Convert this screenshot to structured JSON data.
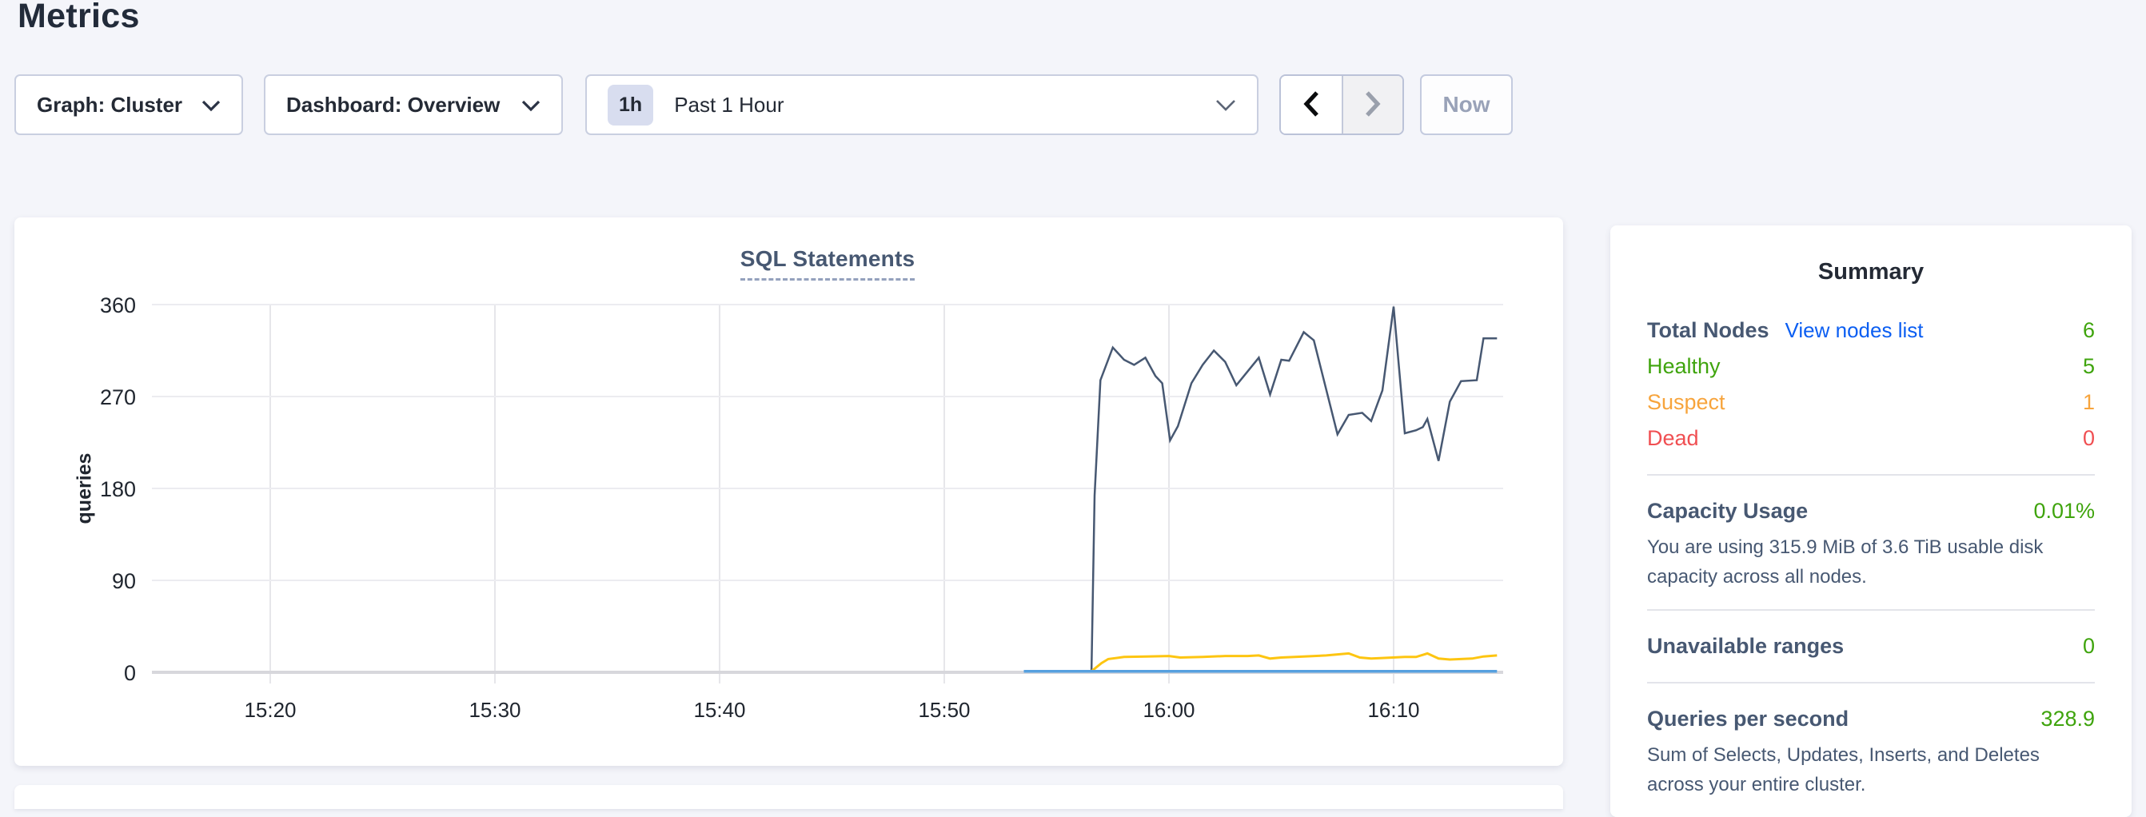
{
  "page": {
    "title": "Metrics"
  },
  "toolbar": {
    "graph_dropdown": "Graph: Cluster",
    "dashboard_dropdown": "Dashboard: Overview",
    "time_window": {
      "badge": "1h",
      "label": "Past 1 Hour"
    },
    "now_button": "Now"
  },
  "summary": {
    "title": "Summary",
    "sections": [
      {
        "rows": [
          {
            "label": "Total Nodes",
            "label_color": "#475872",
            "bold": true,
            "link": "View nodes list",
            "link_color": "#0b5ef2",
            "value": "6",
            "value_color": "#3fa40d"
          },
          {
            "label": "Healthy",
            "label_color": "#3fa40d",
            "value": "5",
            "value_color": "#3fa40d"
          },
          {
            "label": "Suspect",
            "label_color": "#f7a43c",
            "value": "1",
            "value_color": "#f7a43c"
          },
          {
            "label": "Dead",
            "label_color": "#f04f52",
            "value": "0",
            "value_color": "#f04f52"
          }
        ]
      },
      {
        "rows": [
          {
            "label": "Capacity Usage",
            "label_color": "#475872",
            "bold": true,
            "value": "0.01%",
            "value_color": "#3fa40d"
          }
        ],
        "description": "You are using 315.9 MiB of 3.6 TiB usable disk capacity across all nodes."
      },
      {
        "rows": [
          {
            "label": "Unavailable ranges",
            "label_color": "#475872",
            "bold": true,
            "value": "0",
            "value_color": "#3fa40d"
          }
        ]
      },
      {
        "rows": [
          {
            "label": "Queries per second",
            "label_color": "#475872",
            "bold": true,
            "value": "328.9",
            "value_color": "#3fa40d"
          }
        ],
        "description": "Sum of Selects, Updates, Inserts, and Deletes across your entire cluster."
      }
    ]
  },
  "chart_data": {
    "type": "line",
    "title": "SQL Statements",
    "ylabel": "queries",
    "xlabel": "",
    "ylim": [
      0,
      360
    ],
    "y_ticks": [
      0,
      90,
      180,
      270,
      360
    ],
    "x_unit": "minutes relative to 16:00",
    "x_ticks": [
      {
        "t": -40,
        "label": "15:20"
      },
      {
        "t": -30,
        "label": "15:30"
      },
      {
        "t": -20,
        "label": "15:40"
      },
      {
        "t": -10,
        "label": "15:50"
      },
      {
        "t": 0,
        "label": "16:00"
      },
      {
        "t": 10,
        "label": "16:10"
      }
    ],
    "grid": true,
    "legend": "none",
    "series": [
      {
        "name": "statements-navy",
        "color": "#475872",
        "width": 2.5,
        "points": [
          [
            -3.45,
            0
          ],
          [
            -3.31,
            173
          ],
          [
            -3.05,
            286
          ],
          [
            -2.5,
            318
          ],
          [
            -2.0,
            306
          ],
          [
            -1.55,
            301
          ],
          [
            -1.05,
            308
          ],
          [
            -0.6,
            290
          ],
          [
            -0.3,
            283
          ],
          [
            0.05,
            227
          ],
          [
            0.4,
            241
          ],
          [
            1.0,
            283
          ],
          [
            1.5,
            301
          ],
          [
            2.0,
            315
          ],
          [
            2.5,
            304
          ],
          [
            3.0,
            281
          ],
          [
            4.0,
            308
          ],
          [
            4.5,
            272
          ],
          [
            5.0,
            306
          ],
          [
            5.35,
            305
          ],
          [
            6.0,
            333
          ],
          [
            6.45,
            325
          ],
          [
            7.5,
            233
          ],
          [
            8.0,
            252
          ],
          [
            8.6,
            254
          ],
          [
            9.0,
            246
          ],
          [
            9.5,
            276
          ],
          [
            10.0,
            358
          ],
          [
            10.5,
            234
          ],
          [
            11.0,
            237
          ],
          [
            11.3,
            240
          ],
          [
            11.5,
            248
          ],
          [
            12.0,
            207
          ],
          [
            12.5,
            265
          ],
          [
            13.0,
            285
          ],
          [
            13.7,
            286
          ],
          [
            14.0,
            327
          ],
          [
            14.6,
            327
          ]
        ]
      },
      {
        "name": "statements-yellow",
        "color": "#fdc511",
        "width": 3,
        "points": [
          [
            -3.45,
            1
          ],
          [
            -3.0,
            9
          ],
          [
            -2.7,
            13
          ],
          [
            -2.0,
            15
          ],
          [
            -1.0,
            15.5
          ],
          [
            0,
            16
          ],
          [
            0.5,
            14.5
          ],
          [
            1.5,
            15
          ],
          [
            2.5,
            16
          ],
          [
            3.5,
            16
          ],
          [
            4.0,
            16.5
          ],
          [
            4.5,
            13.5
          ],
          [
            5.0,
            14.5
          ],
          [
            6.0,
            15.5
          ],
          [
            7.0,
            16.5
          ],
          [
            7.5,
            17.5
          ],
          [
            8.0,
            18.5
          ],
          [
            8.5,
            14.5
          ],
          [
            9.0,
            13.5
          ],
          [
            9.5,
            14
          ],
          [
            10.5,
            15
          ],
          [
            11.0,
            15
          ],
          [
            11.5,
            18.5
          ],
          [
            12.0,
            13.5
          ],
          [
            12.5,
            12.5
          ],
          [
            13.0,
            13
          ],
          [
            13.5,
            13.5
          ],
          [
            14.0,
            15.5
          ],
          [
            14.6,
            16.5
          ]
        ]
      },
      {
        "name": "statements-blue",
        "color": "#56a0df",
        "width": 3.5,
        "points": [
          [
            -6.46,
            1
          ],
          [
            14.6,
            1
          ]
        ]
      }
    ]
  }
}
